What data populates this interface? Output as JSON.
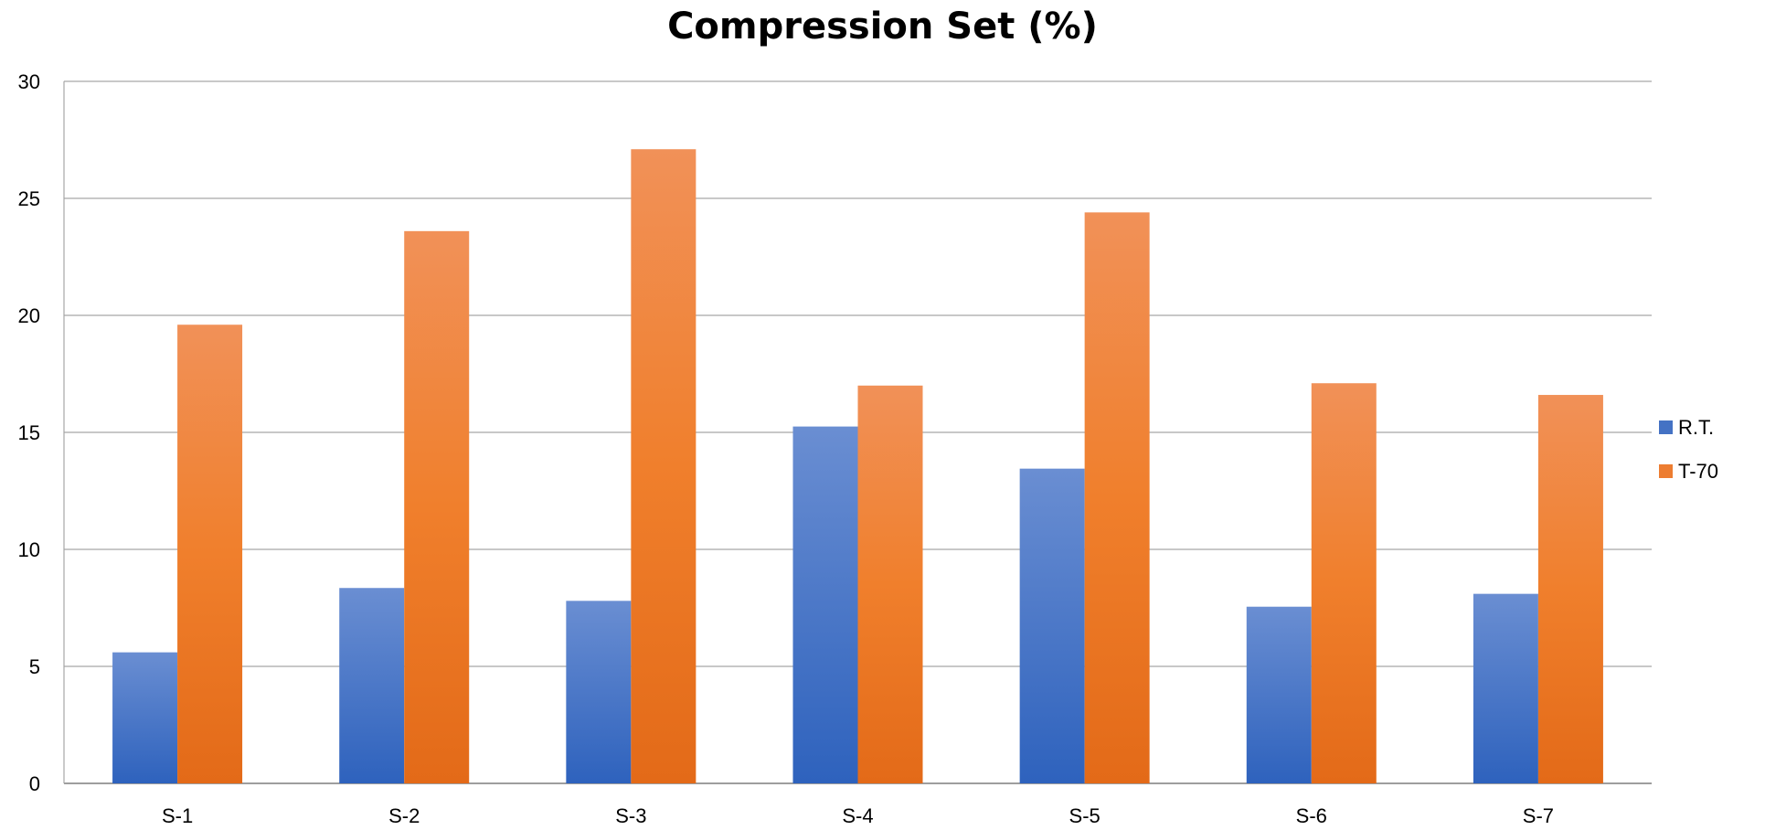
{
  "chart_data": {
    "type": "bar",
    "title": "Compression Set (%)",
    "xlabel": "",
    "ylabel": "",
    "categories": [
      "S-1",
      "S-2",
      "S-3",
      "S-4",
      "S-5",
      "S-6",
      "S-7"
    ],
    "series": [
      {
        "name": "R.T.",
        "values": [
          5.6,
          8.35,
          7.8,
          15.25,
          13.45,
          7.55,
          8.1
        ],
        "color": "#4472C4"
      },
      {
        "name": "T-70",
        "values": [
          19.6,
          23.6,
          27.1,
          17.0,
          24.4,
          17.1,
          16.6
        ],
        "color": "#ED7D31"
      }
    ],
    "ylim": [
      0,
      30
    ],
    "yticks": [
      0,
      5,
      10,
      15,
      20,
      25,
      30
    ],
    "grid": true,
    "legend_position": "right"
  }
}
